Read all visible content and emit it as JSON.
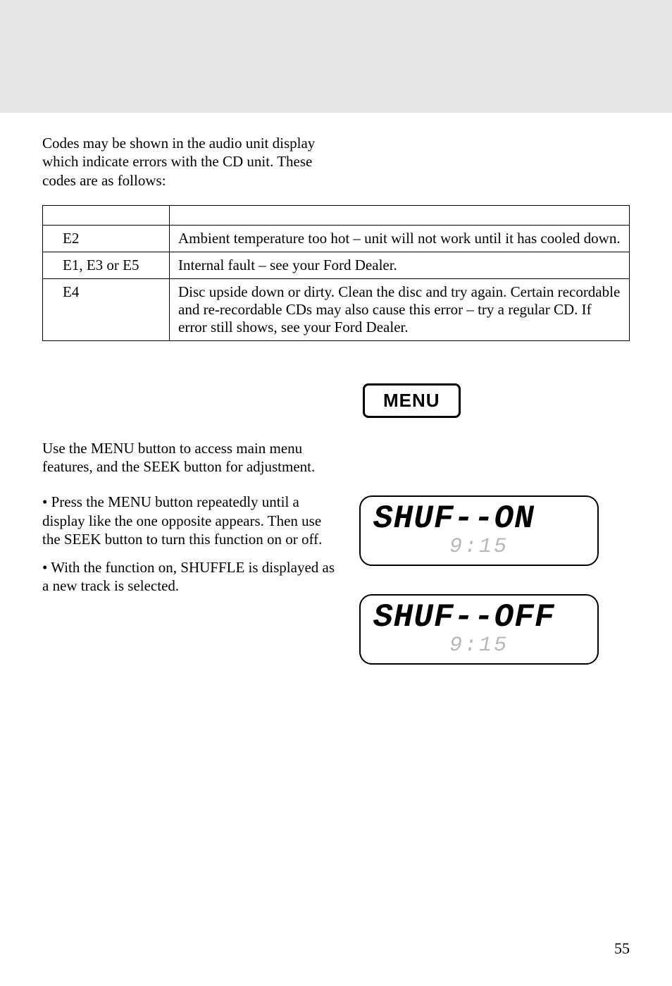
{
  "intro": "Codes may be shown in the audio unit display which indicate errors with the CD unit. These codes are as follows:",
  "table": {
    "header": [
      "",
      ""
    ],
    "rows": [
      {
        "code": "E2",
        "desc": "Ambient temperature too hot – unit will not work until it has cooled down."
      },
      {
        "code": "E1, E3 or E5",
        "desc": "Internal fault – see your Ford Dealer."
      },
      {
        "code": "E4",
        "desc": "Disc upside down or dirty. Clean the disc and try again. Certain recordable and re-recordable CDs may also cause this error – try a regular CD. If error still shows, see your Ford Dealer."
      }
    ]
  },
  "menu_button_label": "MENU",
  "menu_para": "Use the MENU button to access main menu features, and the SEEK button for adjustment.",
  "bullets": [
    "• Press the MENU button repeatedly until a display like the one opposite appears. Then use the SEEK button to turn this function on or off.",
    "• With the function on, SHUFFLE is displayed as a new track is selected."
  ],
  "lcds": [
    {
      "main": "SHUF--ON",
      "sub": "9:15"
    },
    {
      "main": "SHUF--OFF",
      "sub": "9:15"
    }
  ],
  "page_number": "55"
}
